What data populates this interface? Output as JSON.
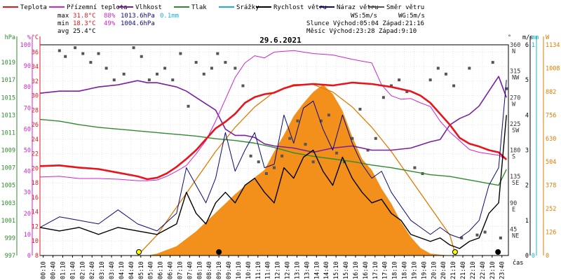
{
  "chart_data": {
    "type": "line",
    "title": "29.6.2021",
    "legend": [
      {
        "label": "Teplota",
        "color": "#e8141b"
      },
      {
        "label": "Přízemní teplota",
        "color": "#d023d6"
      },
      {
        "label": "Vlhkost",
        "color": "#7b1fa2"
      },
      {
        "label": "Tlak",
        "color": "#2e8b2e"
      },
      {
        "label": "Srážky",
        "color": "#1ab3d6"
      },
      {
        "label": "Rychlost větru",
        "color": "#000000"
      },
      {
        "label": "Náraz větru",
        "color": "#0a0a7a"
      },
      {
        "label": "Směr větru",
        "color": "#555555"
      }
    ],
    "stats": {
      "max": {
        "label": "max",
        "temp": "31.8°C",
        "hum": "88%",
        "press": "1013.6hPa",
        "rain": "0.1mm"
      },
      "min": {
        "label": "min",
        "temp": "18.3°C",
        "hum": "49%",
        "press": "1004.6hPa"
      },
      "avg": {
        "label": "avg",
        "temp": "25.4°C"
      }
    },
    "info": {
      "ws": "WS:5m/s",
      "wg": "WG:5m/s",
      "sun": "Slunce Východ:05:04  Západ:21:16",
      "moon": "Měsíc  Východ:23:28  Západ:9:10"
    },
    "x_label": "čas",
    "x_ticks": [
      "00:10",
      "00:40",
      "01:10",
      "01:40",
      "02:10",
      "02:40",
      "03:10",
      "03:40",
      "04:10",
      "04:40",
      "05:10",
      "05:40",
      "06:10",
      "06:40",
      "07:10",
      "07:40",
      "08:10",
      "08:40",
      "09:10",
      "09:40",
      "10:10",
      "10:40",
      "11:10",
      "11:40",
      "12:10",
      "12:40",
      "13:10",
      "13:40",
      "14:10",
      "14:40",
      "15:10",
      "15:40",
      "16:10",
      "16:40",
      "17:10",
      "17:40",
      "18:10",
      "18:40",
      "19:10",
      "19:40",
      "20:10",
      "20:40",
      "21:10",
      "21:40",
      "22:10",
      "22:40",
      "23:10",
      "23:40"
    ],
    "axes": {
      "pressure": {
        "unit": "hPa",
        "color": "#2e8b2e",
        "ylim": [
          997,
          1021
        ],
        "ticks": [
          "997",
          "999",
          "1001",
          "1003",
          "1005",
          "1007",
          "1009",
          "1011",
          "1013",
          "1015",
          "1017",
          "1019"
        ]
      },
      "humidity": {
        "unit": "%",
        "color": "#d023d6",
        "ylim": [
          0,
          100
        ],
        "ticks": [
          "0",
          "10",
          "20",
          "30",
          "40",
          "50",
          "60",
          "70",
          "80",
          "90",
          "100"
        ]
      },
      "temperature": {
        "unit": "°C",
        "color": "#e8141b",
        "ylim": [
          8,
          37
        ],
        "ticks": [
          "8",
          "10",
          "12",
          "14",
          "16",
          "18",
          "20",
          "22",
          "24",
          "26",
          "28",
          "30",
          "32",
          "34",
          "36"
        ]
      },
      "direction": {
        "unit": "°",
        "ylim": [
          0,
          360
        ],
        "ticks": [
          {
            "v": 360,
            "l": "N"
          },
          {
            "v": 315,
            "l": "NW"
          },
          {
            "v": 270,
            "l": "W"
          },
          {
            "v": 225,
            "l": "SW"
          },
          {
            "v": 180,
            "l": "S"
          },
          {
            "v": 135,
            "l": "SE"
          },
          {
            "v": 90,
            "l": "E"
          },
          {
            "v": 45,
            "l": "NE"
          }
        ]
      },
      "wind": {
        "unit": "m/s",
        "ylim": [
          0,
          6
        ],
        "ticks": [
          "0",
          "1",
          "2",
          "3",
          "4",
          "5",
          "6"
        ]
      },
      "rain": {
        "unit": "mm",
        "color": "#1ab3d6",
        "ylim": [
          0,
          1
        ],
        "ticks": [
          "0",
          "1"
        ]
      },
      "radiation": {
        "unit": "W",
        "color": "#e07b00",
        "ylim": [
          0,
          1134
        ],
        "ticks": [
          "0",
          "126",
          "252",
          "378",
          "504",
          "630",
          "756",
          "882",
          "1008",
          "1134"
        ]
      }
    },
    "series": [
      {
        "name": "Teplota",
        "axis": "temperature",
        "color": "#e8141b",
        "x": [
          0,
          1,
          2,
          3,
          4,
          5,
          5.5,
          6,
          6.5,
          7,
          7.5,
          8,
          8.5,
          9,
          9.5,
          10,
          10.5,
          11,
          11.5,
          12,
          12.5,
          13,
          14,
          15,
          16,
          17,
          18,
          19,
          19.5,
          20,
          20.5,
          21,
          21.5,
          22,
          22.5,
          23,
          23.5,
          23.9
        ],
        "y": [
          20.3,
          20.4,
          20.1,
          19.9,
          19.4,
          18.9,
          18.5,
          18.7,
          19.3,
          20.2,
          21.3,
          22.5,
          24,
          25.5,
          26.4,
          27.5,
          29,
          29.8,
          30.2,
          30.4,
          31,
          31.4,
          31.6,
          31.4,
          31.8,
          31.6,
          31.2,
          30.6,
          30,
          29,
          27.5,
          26,
          24.2,
          23.4,
          23,
          22.5,
          22.2,
          21.2
        ]
      },
      {
        "name": "Přízemní teplota",
        "axis": "temperature",
        "color": "#d023d6",
        "x": [
          0,
          1,
          2,
          3,
          4,
          5,
          5.5,
          6,
          6.5,
          7,
          7.5,
          8,
          8.5,
          9,
          9.5,
          10,
          10.5,
          11,
          11.5,
          12,
          13,
          14,
          15,
          16,
          17,
          17.5,
          18,
          18.5,
          19,
          19.5,
          20,
          20.5,
          21,
          21.5,
          22,
          22.5,
          23,
          23.5,
          23.9
        ],
        "y": [
          18.8,
          18.9,
          18.6,
          18.6,
          18.5,
          18.3,
          18.3,
          18.4,
          18.9,
          19.6,
          20.4,
          22,
          23.8,
          26.5,
          29.5,
          32.5,
          34.5,
          35.5,
          35.2,
          36,
          36.2,
          35.8,
          35.6,
          35,
          34.5,
          31.5,
          30,
          29.5,
          29.6,
          29,
          28.5,
          26.5,
          25,
          23.8,
          22.6,
          22.2,
          22,
          21.8,
          21.2
        ]
      },
      {
        "name": "Vlhkost",
        "axis": "humidity",
        "color": "#7b1fa2",
        "x": [
          0,
          1,
          2,
          3,
          4,
          5,
          5.5,
          6,
          6.5,
          7,
          7.5,
          8,
          8.5,
          9,
          9.5,
          10,
          10.5,
          11,
          11.5,
          12,
          13,
          14,
          15,
          16,
          17,
          18,
          19,
          20,
          20.5,
          21,
          21.5,
          22,
          22.5,
          23,
          23.5,
          23.9
        ],
        "y": [
          77,
          78,
          78,
          80,
          81,
          83,
          82,
          82,
          81,
          80,
          78,
          75,
          72,
          69,
          60,
          57,
          57,
          56,
          53,
          52,
          51,
          49,
          51,
          52,
          50,
          50,
          51,
          54,
          55,
          62,
          65,
          67,
          71,
          78,
          85,
          75
        ]
      },
      {
        "name": "Tlak",
        "axis": "pressure",
        "color": "#2e8b2e",
        "x": [
          0,
          1,
          2,
          3,
          4,
          5,
          6,
          7,
          8,
          9,
          10,
          11,
          12,
          13,
          14,
          15,
          16,
          17,
          18,
          19,
          20,
          21,
          22,
          23,
          23.5,
          23.9
        ],
        "y": [
          1012.5,
          1012.3,
          1011.9,
          1011.6,
          1011.4,
          1011.2,
          1011,
          1010.8,
          1010.6,
          1010.3,
          1010.1,
          1009.8,
          1009.3,
          1008.7,
          1008.3,
          1008,
          1007.7,
          1007.3,
          1007,
          1006.6,
          1006.2,
          1006,
          1005.6,
          1005.2,
          1005,
          1006.8
        ]
      },
      {
        "name": "Rychlost větru",
        "axis": "wind",
        "color": "#000000",
        "x": [
          0,
          1,
          2,
          3,
          4,
          5,
          6,
          7,
          7.5,
          8,
          8.5,
          9,
          9.5,
          10,
          10.5,
          11,
          11.5,
          12,
          12.5,
          13,
          13.5,
          14,
          14.5,
          15,
          15.5,
          16,
          16.5,
          17,
          17.5,
          18,
          18.5,
          19,
          19.5,
          20,
          20.5,
          21,
          21.5,
          22,
          22.5,
          23,
          23.5,
          23.9
        ],
        "y": [
          0.8,
          0.7,
          0.8,
          0.6,
          0.8,
          0.7,
          0.6,
          0.9,
          1.8,
          1.2,
          0.9,
          1.5,
          1.8,
          1.5,
          2,
          2.2,
          1.8,
          1.5,
          2.5,
          2.2,
          2.8,
          3,
          2.4,
          2,
          2.8,
          2.2,
          1.8,
          1.5,
          1.6,
          1.2,
          1,
          0.6,
          0.5,
          0.4,
          0.5,
          0.3,
          0.2,
          0.4,
          0.5,
          1.2,
          1.5,
          4
        ]
      },
      {
        "name": "Náraz větru",
        "axis": "wind",
        "color": "#0a0a7a",
        "x": [
          0,
          1,
          2,
          3,
          4,
          5,
          6,
          7,
          7.5,
          8,
          8.5,
          9,
          9.5,
          10,
          10.5,
          11,
          11.5,
          12,
          12.5,
          13,
          13.5,
          14,
          14.5,
          15,
          15.5,
          16,
          16.5,
          17,
          17.5,
          18,
          18.5,
          19,
          19.5,
          20,
          20.5,
          21,
          21.5,
          22,
          22.5,
          23,
          23.5,
          23.9
        ],
        "y": [
          0.8,
          1.1,
          1,
          0.9,
          1.3,
          0.9,
          0.7,
          1.2,
          2.5,
          2,
          1.5,
          2.2,
          3.5,
          2.4,
          3,
          3.5,
          2.5,
          2.6,
          4,
          3.2,
          4.2,
          4.4,
          3.6,
          3,
          4,
          3.2,
          2.6,
          2.2,
          2.4,
          1.8,
          1.4,
          1,
          0.8,
          0.6,
          0.8,
          0.6,
          0.5,
          0.7,
          1,
          2,
          2.5,
          5
        ]
      },
      {
        "name": "Radiation",
        "axis": "radiation",
        "color": "#f28a10",
        "x": [
          0,
          5.5,
          6,
          7,
          8,
          9,
          10,
          11,
          11.5,
          12,
          12.5,
          13,
          13.5,
          14,
          14.5,
          15,
          15.5,
          16,
          16.5,
          17,
          17.5,
          18,
          18.5,
          19,
          19.5,
          20,
          20.5,
          21,
          24
        ],
        "y": [
          0,
          0,
          10,
          50,
          130,
          230,
          330,
          420,
          460,
          560,
          650,
          750,
          820,
          880,
          920,
          870,
          780,
          640,
          520,
          460,
          360,
          280,
          180,
          100,
          40,
          10,
          5,
          0,
          0
        ]
      },
      {
        "name": "Theoretical radiation",
        "axis": "radiation",
        "color": "#e07b00",
        "x": [
          5,
          6,
          7,
          8,
          9,
          10,
          11,
          12,
          13,
          14,
          15,
          16,
          17,
          18,
          19,
          20,
          21,
          21.3
        ],
        "y": [
          0,
          110,
          260,
          410,
          560,
          690,
          800,
          880,
          920,
          920,
          880,
          800,
          690,
          560,
          410,
          260,
          110,
          0
        ]
      },
      {
        "name": "Směr větru",
        "axis": "direction",
        "color": "#555555",
        "x": [
          1,
          1.3,
          1.8,
          2.2,
          2.6,
          3,
          3.4,
          3.8,
          4.3,
          4.8,
          5.2,
          5.6,
          6,
          6.4,
          6.8,
          7.2,
          7.6,
          8,
          8.4,
          8.8,
          9.1,
          9.5,
          10,
          10.4,
          10.8,
          11.2,
          11.6,
          12,
          12.4,
          12.8,
          13.2,
          13.6,
          14,
          14.4,
          14.8,
          15.2,
          15.6,
          16,
          16.4,
          16.8,
          17.2,
          17.6,
          18,
          18.4,
          18.8,
          19.2,
          19.6,
          20,
          20.4,
          20.8,
          21.2,
          21.6,
          22,
          22.4,
          22.8,
          23.2,
          23.6,
          23.9
        ],
        "y": [
          350,
          340,
          355,
          345,
          330,
          345,
          320,
          300,
          310,
          355,
          340,
          300,
          310,
          320,
          300,
          345,
          255,
          330,
          310,
          320,
          345,
          330,
          320,
          290,
          170,
          160,
          140,
          150,
          170,
          200,
          230,
          190,
          160,
          230,
          240,
          175,
          160,
          200,
          250,
          180,
          200,
          270,
          290,
          300,
          280,
          150,
          140,
          300,
          320,
          310,
          290,
          30,
          320,
          35,
          40,
          330,
          30,
          285
        ]
      }
    ]
  }
}
